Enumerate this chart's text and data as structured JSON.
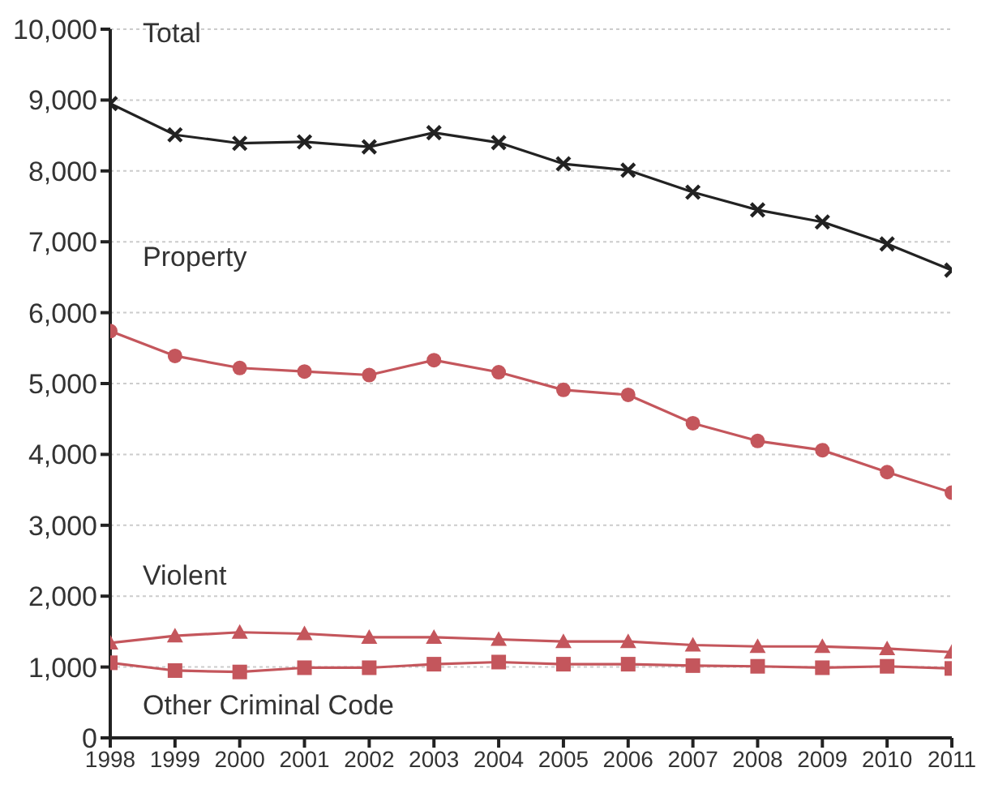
{
  "chart_data": {
    "type": "line",
    "x": [
      1998,
      1999,
      2000,
      2001,
      2002,
      2003,
      2004,
      2005,
      2006,
      2007,
      2008,
      2009,
      2010,
      2011
    ],
    "series": [
      {
        "name": "Total",
        "color": "#222222",
        "marker": "cross",
        "values": [
          8950,
          8510,
          8390,
          8410,
          8340,
          8540,
          8400,
          8100,
          8010,
          7700,
          7450,
          7280,
          6970,
          6600
        ]
      },
      {
        "name": "Property",
        "color": "#c4565c",
        "marker": "circle",
        "values": [
          5740,
          5390,
          5220,
          5170,
          5120,
          5330,
          5160,
          4910,
          4840,
          4440,
          4190,
          4060,
          3750,
          3460
        ]
      },
      {
        "name": "Violent",
        "color": "#c4565c",
        "marker": "triangle",
        "values": [
          1340,
          1440,
          1490,
          1470,
          1420,
          1420,
          1390,
          1360,
          1360,
          1310,
          1290,
          1290,
          1260,
          1210
        ]
      },
      {
        "name": "Other Criminal Code",
        "color": "#c4565c",
        "marker": "square",
        "values": [
          1060,
          950,
          930,
          990,
          990,
          1040,
          1070,
          1040,
          1040,
          1020,
          1010,
          990,
          1010,
          980
        ]
      }
    ],
    "xlim": [
      1998,
      2011
    ],
    "xticks": [
      1998,
      1999,
      2000,
      2001,
      2002,
      2003,
      2004,
      2005,
      2006,
      2007,
      2008,
      2009,
      2010,
      2011
    ],
    "ylim": [
      0,
      10000
    ],
    "yticks": [
      0,
      {
        "value": 1000,
        "label": "1,000"
      },
      {
        "value": 2000,
        "label": "2,000"
      },
      {
        "value": 3000,
        "label": "3,000"
      },
      {
        "value": 4000,
        "label": "4,000"
      },
      {
        "value": 5000,
        "label": "5,000"
      },
      {
        "value": 6000,
        "label": "6,000"
      },
      {
        "value": 7000,
        "label": "7,000"
      },
      {
        "value": 8000,
        "label": "8,000"
      },
      {
        "value": 9000,
        "label": "9,000"
      },
      {
        "value": 10000,
        "label": "10,000"
      }
    ],
    "grid": "y",
    "line_style": "solid"
  }
}
